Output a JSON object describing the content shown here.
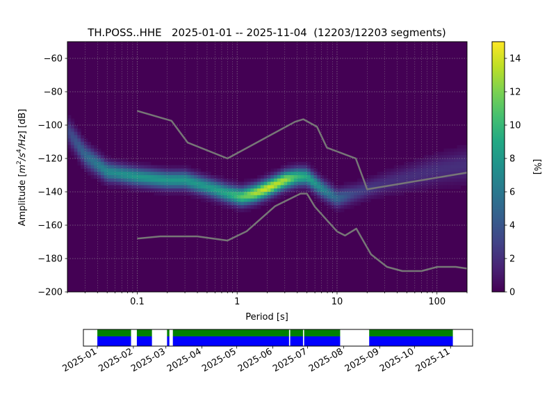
{
  "chart_data": [
    {
      "type": "heatmap",
      "title": "TH.POSS..HHE   2025-01-01 -- 2025-11-04  (12203/12203 segments)",
      "xlabel": "Period [s]",
      "ylabel": "Amplitude [m²/s⁴/Hz] [dB]",
      "ylabel_parts": {
        "pre": "Amplitude [",
        "m": "m",
        "exp2": "2",
        "slash_s": "/s",
        "exp4": "4",
        "per_hz": "/Hz",
        "post": "] [dB]"
      },
      "x_scale": "log",
      "xlim": [
        0.02,
        200
      ],
      "ylim": [
        -200,
        -50
      ],
      "x_ticks": [
        {
          "value": 0.1,
          "label": "0.1"
        },
        {
          "value": 1,
          "label": "1"
        },
        {
          "value": 10,
          "label": "10"
        },
        {
          "value": 100,
          "label": "100"
        }
      ],
      "y_ticks": [
        {
          "value": -60,
          "label": "−60"
        },
        {
          "value": -80,
          "label": "−80"
        },
        {
          "value": -100,
          "label": "−100"
        },
        {
          "value": -120,
          "label": "−120"
        },
        {
          "value": -140,
          "label": "−140"
        },
        {
          "value": -160,
          "label": "−160"
        },
        {
          "value": -180,
          "label": "−180"
        },
        {
          "value": -200,
          "label": "−200"
        }
      ],
      "grid": true,
      "colormap": "viridis",
      "colorbar": {
        "label": "[%]",
        "range": [
          0,
          15
        ],
        "ticks": [
          {
            "value": 0,
            "label": "0"
          },
          {
            "value": 2,
            "label": "2"
          },
          {
            "value": 4,
            "label": "4"
          },
          {
            "value": 6,
            "label": "6"
          },
          {
            "value": 8,
            "label": "8"
          },
          {
            "value": 10,
            "label": "10"
          },
          {
            "value": 12,
            "label": "12"
          },
          {
            "value": 14,
            "label": "14"
          }
        ]
      },
      "mode_curve": [
        {
          "period": 0.02,
          "db": -103,
          "pct": 3
        },
        {
          "period": 0.03,
          "db": -118,
          "pct": 5
        },
        {
          "period": 0.05,
          "db": -128,
          "pct": 7
        },
        {
          "period": 0.1,
          "db": -131,
          "pct": 8
        },
        {
          "period": 0.2,
          "db": -133,
          "pct": 8
        },
        {
          "period": 0.3,
          "db": -133,
          "pct": 8
        },
        {
          "period": 0.5,
          "db": -137,
          "pct": 8
        },
        {
          "period": 0.8,
          "db": -141,
          "pct": 9
        },
        {
          "period": 1.1,
          "db": -143,
          "pct": 11
        },
        {
          "period": 1.5,
          "db": -141,
          "pct": 13
        },
        {
          "period": 2,
          "db": -138,
          "pct": 14
        },
        {
          "period": 3,
          "db": -133,
          "pct": 13
        },
        {
          "period": 4,
          "db": -131,
          "pct": 10
        },
        {
          "period": 5,
          "db": -131,
          "pct": 9
        },
        {
          "period": 7,
          "db": -138,
          "pct": 7
        },
        {
          "period": 10,
          "db": -144,
          "pct": 5
        },
        {
          "period": 15,
          "db": -141,
          "pct": 3
        },
        {
          "period": 30,
          "db": -135,
          "pct": 2
        },
        {
          "period": 100,
          "db": -127,
          "pct": 2
        },
        {
          "period": 200,
          "db": -124,
          "pct": 2
        }
      ],
      "nhnm": [
        {
          "period": 0.1,
          "db": -91.5
        },
        {
          "period": 0.22,
          "db": -97.4
        },
        {
          "period": 0.32,
          "db": -110.5
        },
        {
          "period": 0.8,
          "db": -120
        },
        {
          "period": 3.8,
          "db": -98
        },
        {
          "period": 4.6,
          "db": -96.5
        },
        {
          "period": 6.3,
          "db": -101
        },
        {
          "period": 7.9,
          "db": -113.5
        },
        {
          "period": 15.4,
          "db": -120
        },
        {
          "period": 20,
          "db": -138.5
        },
        {
          "period": 200,
          "db": -128.5
        }
      ],
      "nlnm": [
        {
          "period": 0.1,
          "db": -168
        },
        {
          "period": 0.17,
          "db": -166.7
        },
        {
          "period": 0.4,
          "db": -166.7
        },
        {
          "period": 0.8,
          "db": -169.2
        },
        {
          "period": 1.24,
          "db": -163.7
        },
        {
          "period": 2.4,
          "db": -148.6
        },
        {
          "period": 4.3,
          "db": -141.1
        },
        {
          "period": 5,
          "db": -141.1
        },
        {
          "period": 6,
          "db": -149
        },
        {
          "period": 10,
          "db": -163.8
        },
        {
          "period": 12,
          "db": -166.2
        },
        {
          "period": 15.6,
          "db": -162.1
        },
        {
          "period": 21.9,
          "db": -177.5
        },
        {
          "period": 31.6,
          "db": -185
        },
        {
          "period": 45,
          "db": -187.5
        },
        {
          "period": 70,
          "db": -187.5
        },
        {
          "period": 101,
          "db": -185
        },
        {
          "period": 154,
          "db": -185
        },
        {
          "period": 200,
          "db": -186
        }
      ]
    },
    {
      "type": "bar",
      "title": "",
      "xlim": [
        "2024-12-20",
        "2025-11-20"
      ],
      "x_ticks": [
        "2025-01",
        "2025-02",
        "2025-03",
        "2025-04",
        "2025-05",
        "2025-06",
        "2025-07",
        "2025-08",
        "2025-09",
        "2025-10",
        "2025-11"
      ],
      "x_tick_dates": [
        "2025-01-01",
        "2025-02-01",
        "2025-03-01",
        "2025-04-01",
        "2025-05-01",
        "2025-06-01",
        "2025-07-01",
        "2025-08-01",
        "2025-09-01",
        "2025-10-01",
        "2025-11-01"
      ],
      "coverage_segments": [
        {
          "start": "2025-01-01",
          "end": "2025-01-30"
        },
        {
          "start": "2025-02-04",
          "end": "2025-02-17"
        },
        {
          "start": "2025-03-02",
          "end": "2025-03-04"
        },
        {
          "start": "2025-03-07",
          "end": "2025-06-15"
        },
        {
          "start": "2025-06-16",
          "end": "2025-06-27"
        },
        {
          "start": "2025-06-28",
          "end": "2025-07-29"
        },
        {
          "start": "2025-08-23",
          "end": "2025-11-03"
        }
      ],
      "colors": {
        "used": "#008000",
        "available": "#0000ff"
      }
    }
  ]
}
